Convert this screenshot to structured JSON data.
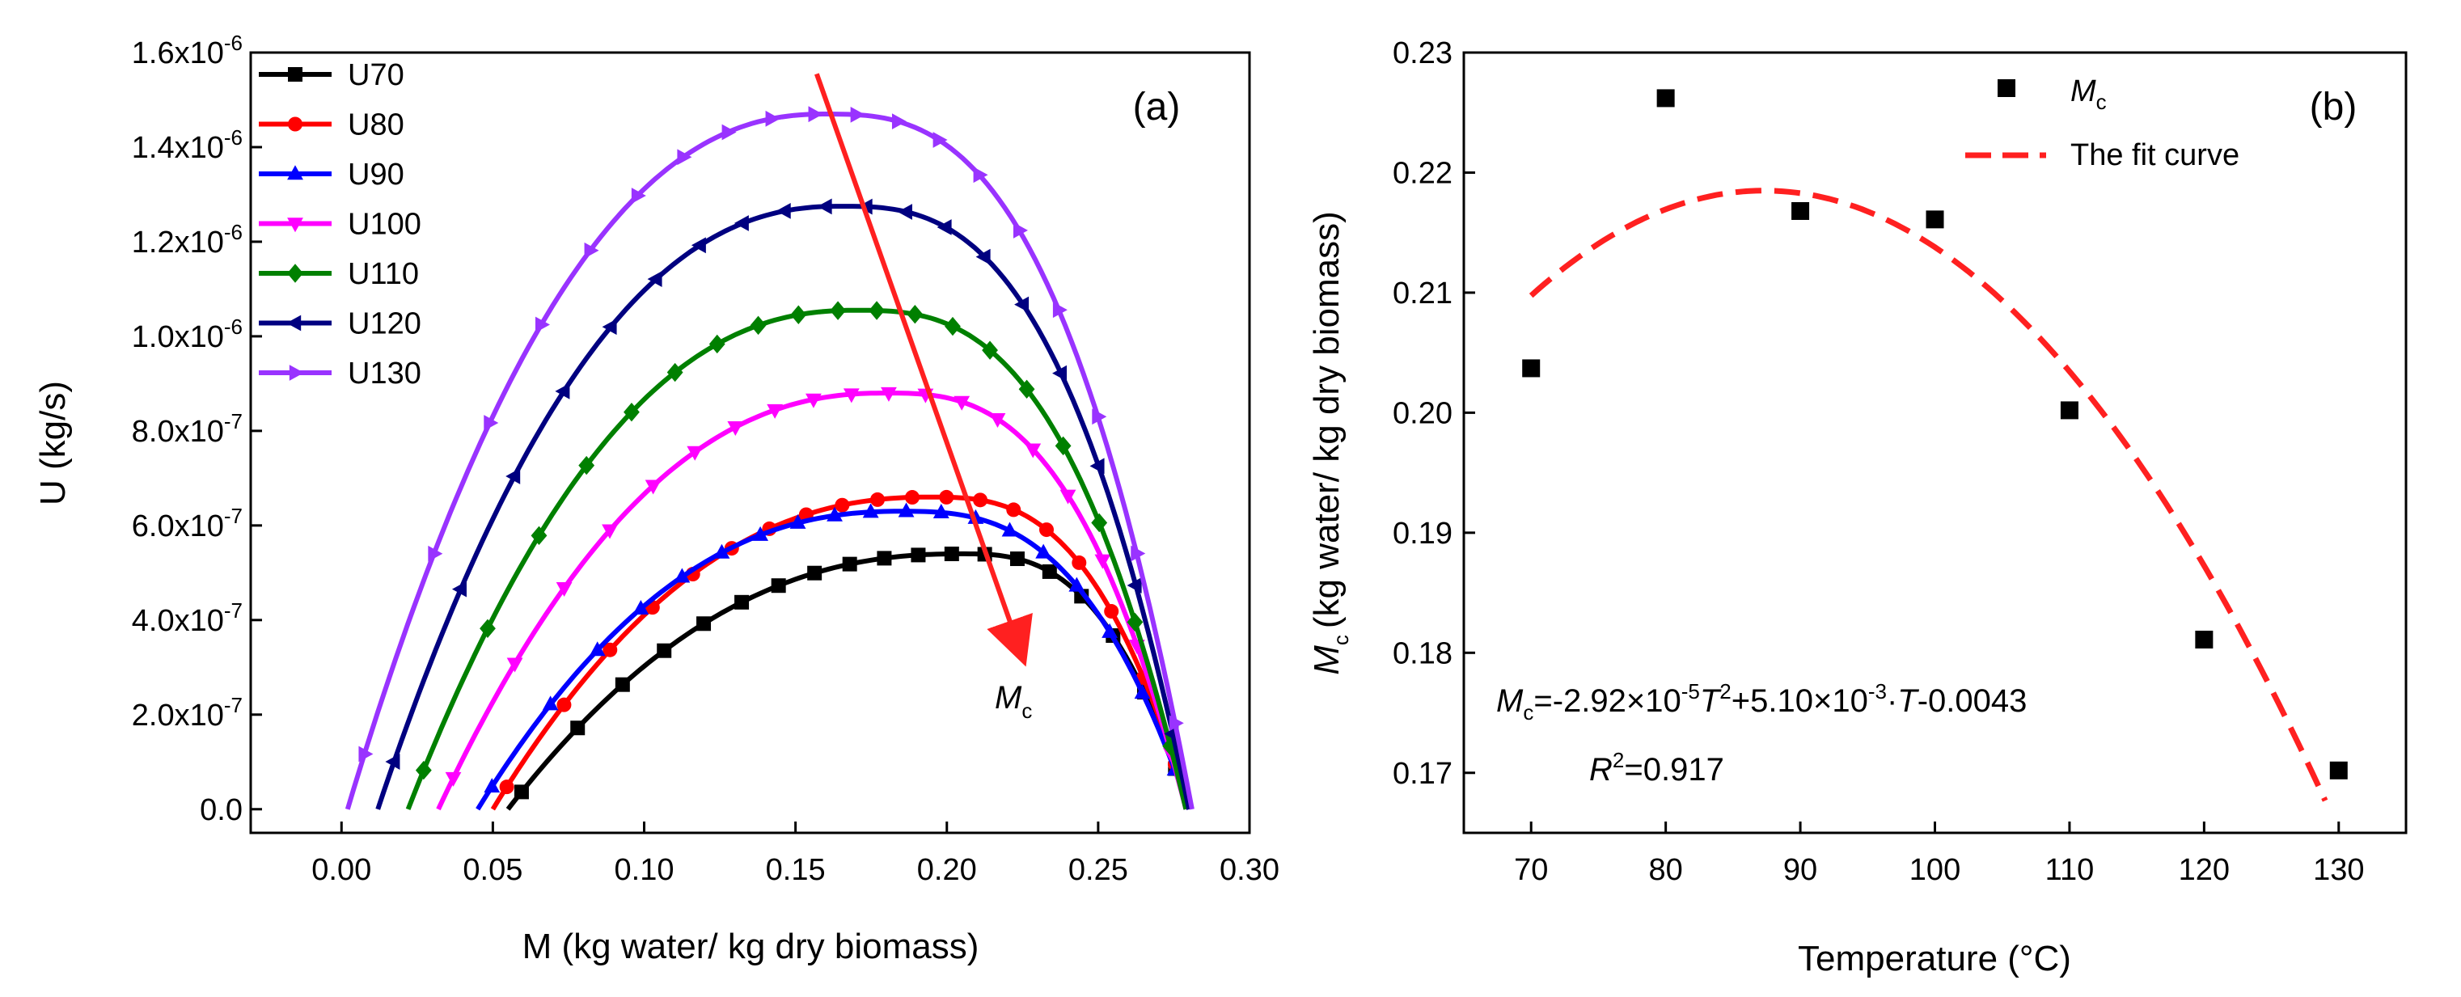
{
  "chart_data": [
    {
      "type": "line",
      "panel_label": "(a)",
      "xlabel": "M (kg water/ kg dry biomass)",
      "ylabel": "U (kg/s)",
      "xlim": [
        -0.03,
        0.3
      ],
      "ylim": [
        -5e-08,
        1.6e-06
      ],
      "x_ticks": [
        0.0,
        0.05,
        0.1,
        0.15,
        0.2,
        0.25,
        0.3
      ],
      "x_tick_labels": [
        "0.00",
        "0.05",
        "0.10",
        "0.15",
        "0.20",
        "0.25",
        "0.30"
      ],
      "y_ticks": [
        0,
        2e-07,
        4e-07,
        6e-07,
        8e-07,
        1e-06,
        1.2e-06,
        1.4e-06,
        1.6e-06
      ],
      "y_tick_labels": [
        {
          "mantissa": "0.0",
          "exp": ""
        },
        {
          "mantissa": "2.0x10",
          "exp": "-7"
        },
        {
          "mantissa": "4.0x10",
          "exp": "-7"
        },
        {
          "mantissa": "6.0x10",
          "exp": "-7"
        },
        {
          "mantissa": "8.0x10",
          "exp": "-7"
        },
        {
          "mantissa": "1.0x10",
          "exp": "-6"
        },
        {
          "mantissa": "1.2x10",
          "exp": "-6"
        },
        {
          "mantissa": "1.4x10",
          "exp": "-6"
        },
        {
          "mantissa": "1.6x10",
          "exp": "-6"
        }
      ],
      "legend_position": "top-left",
      "arrow": {
        "label": "M",
        "label_sub": "c",
        "from": [
          0.157,
          1.555e-06
        ],
        "to": [
          0.224,
          3.4e-07
        ]
      },
      "series": [
        {
          "name": "U70",
          "color": "#000000",
          "marker": "square",
          "Umax": 5.4e-07,
          "Mpeak": 0.205,
          "M0": 0.055,
          "M1": 0.28
        },
        {
          "name": "U80",
          "color": "#ff0000",
          "marker": "circle",
          "Umax": 6.6e-07,
          "Mpeak": 0.195,
          "M0": 0.05,
          "M1": 0.28
        },
        {
          "name": "U90",
          "color": "#0000ff",
          "marker": "triangle-up",
          "Umax": 6.3e-07,
          "Mpeak": 0.185,
          "M0": 0.045,
          "M1": 0.28
        },
        {
          "name": "U100",
          "color": "#ff00ff",
          "marker": "triangle-down",
          "Umax": 8.8e-07,
          "Mpeak": 0.18,
          "M0": 0.032,
          "M1": 0.279
        },
        {
          "name": "U110",
          "color": "#008000",
          "marker": "diamond",
          "Umax": 1.055e-06,
          "Mpeak": 0.17,
          "M0": 0.022,
          "M1": 0.279
        },
        {
          "name": "U120",
          "color": "#000080",
          "marker": "triangle-left",
          "Umax": 1.275e-06,
          "Mpeak": 0.165,
          "M0": 0.012,
          "M1": 0.28
        },
        {
          "name": "U130",
          "color": "#9933ff",
          "marker": "triangle-right",
          "Umax": 1.47e-06,
          "Mpeak": 0.16,
          "M0": 0.002,
          "M1": 0.281
        }
      ]
    },
    {
      "type": "scatter",
      "panel_label": "(b)",
      "xlabel": "Temperature (°C)",
      "ylabel": "(kg water/ kg dry biomass)",
      "ylabel_var": "M",
      "ylabel_sub": "c",
      "xlim": [
        65,
        135
      ],
      "ylim": [
        0.165,
        0.23
      ],
      "x_ticks": [
        70,
        80,
        90,
        100,
        110,
        120,
        130
      ],
      "x_tick_labels": [
        "70",
        "80",
        "90",
        "100",
        "110",
        "120",
        "130"
      ],
      "y_ticks": [
        0.17,
        0.18,
        0.19,
        0.2,
        0.21,
        0.22,
        0.23
      ],
      "y_tick_labels": [
        "0.17",
        "0.18",
        "0.19",
        "0.20",
        "0.21",
        "0.22",
        "0.23"
      ],
      "legend_position": "top-right",
      "points": {
        "name": "M",
        "name_sub": "c",
        "x": [
          70,
          80,
          90,
          100,
          110,
          120,
          130
        ],
        "y": [
          0.2037,
          0.2262,
          0.2168,
          0.2161,
          0.2002,
          0.1811,
          0.1702
        ]
      },
      "fit": {
        "name": "The fit curve",
        "a": -2.92e-05,
        "b": 0.0051,
        "c": -0.0043,
        "x_range": [
          70,
          129
        ],
        "display_peak": 0.2185,
        "display_peak_x": 87.3
      },
      "equation": {
        "var": "M",
        "sub": "c",
        "part1": "=-2.92×10",
        "exp1": "-5",
        "var2": "T",
        "exp2": "2",
        "part2": "+5.10×10",
        "exp3": "-3",
        "part3": "·",
        "var3": "T",
        "part4": "-0.0043"
      },
      "r_squared": {
        "label": "R",
        "exp": "2",
        "value": "=0.917"
      }
    }
  ]
}
